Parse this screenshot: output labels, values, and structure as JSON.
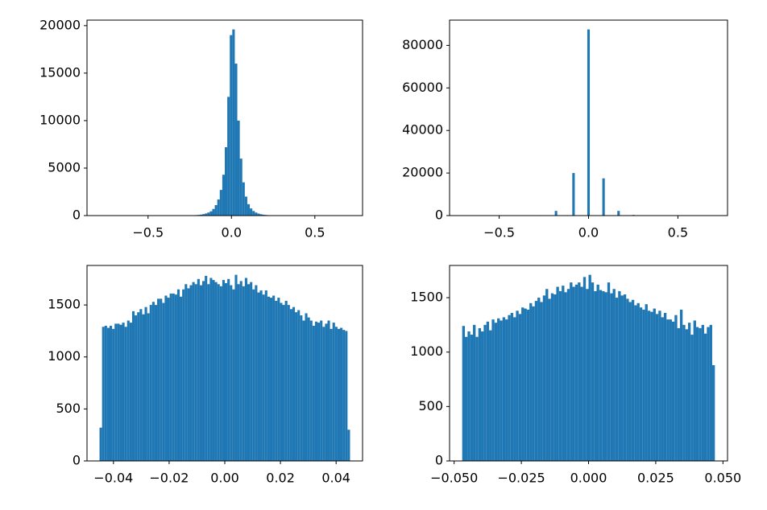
{
  "chart_data": [
    {
      "type": "histogram",
      "color": "#1f77b4",
      "bins": [
        -0.79,
        -0.775,
        -0.76,
        -0.745,
        -0.73,
        -0.715,
        -0.7,
        -0.685,
        -0.67,
        -0.655,
        -0.64,
        -0.625,
        -0.61,
        -0.595,
        -0.58,
        -0.565,
        -0.55,
        -0.535,
        -0.52,
        -0.505,
        -0.49,
        -0.475,
        -0.46,
        -0.445,
        -0.43,
        -0.415,
        -0.4,
        -0.385,
        -0.37,
        -0.355,
        -0.34,
        -0.325,
        -0.31,
        -0.295,
        -0.28,
        -0.265,
        -0.25,
        -0.235,
        -0.22,
        -0.205,
        -0.19,
        -0.175,
        -0.16,
        -0.145,
        -0.13,
        -0.115,
        -0.1,
        -0.085,
        -0.07,
        -0.055,
        -0.04,
        -0.025,
        -0.01,
        0.005,
        0.02,
        0.035,
        0.05,
        0.065,
        0.08,
        0.095,
        0.11,
        0.125,
        0.14,
        0.155,
        0.17,
        0.185,
        0.2,
        0.215,
        0.23,
        0.245,
        0.26,
        0.275,
        0.29,
        0.305,
        0.32,
        0.335,
        0.35,
        0.365,
        0.38,
        0.395,
        0.41,
        0.425,
        0.44,
        0.455,
        0.47,
        0.485,
        0.5,
        0.515,
        0.53,
        0.545,
        0.56,
        0.575,
        0.59,
        0.605,
        0.62,
        0.635,
        0.65,
        0.665,
        0.68,
        0.695,
        0.71
      ],
      "values": [
        0,
        0,
        0,
        0,
        0,
        0,
        0,
        0,
        0,
        0,
        0,
        0,
        0,
        0,
        0,
        0,
        0,
        0,
        0,
        0,
        0,
        0,
        0,
        0,
        0,
        0,
        0,
        0,
        0,
        0,
        2,
        3,
        5,
        8,
        12,
        18,
        25,
        35,
        50,
        70,
        100,
        150,
        220,
        320,
        450,
        700,
        1100,
        1700,
        2700,
        4300,
        7200,
        12500,
        19000,
        19600,
        16000,
        10000,
        6000,
        3500,
        2000,
        1200,
        750,
        480,
        320,
        210,
        140,
        95,
        65,
        45,
        30,
        20,
        14,
        10,
        7,
        5,
        3,
        2,
        0,
        0,
        0,
        0,
        0,
        0,
        0,
        0,
        0,
        0,
        0,
        0,
        0,
        0,
        0,
        0,
        0,
        0,
        0,
        0,
        0,
        0,
        0,
        0
      ],
      "xlim": [
        -0.866,
        0.786
      ],
      "xticks": [
        {
          "value": -0.5,
          "label": "−0.5"
        },
        {
          "value": 0,
          "label": "0.0"
        },
        {
          "value": 0.5,
          "label": "0.5"
        }
      ],
      "ylim": [
        0,
        20580
      ],
      "yticks": [
        0,
        5000,
        10000,
        15000,
        20000
      ]
    },
    {
      "type": "histogram",
      "color": "#1f77b4",
      "bins": [
        -0.707,
        -0.693,
        -0.679,
        -0.665,
        -0.651,
        -0.637,
        -0.623,
        -0.609,
        -0.595,
        -0.581,
        -0.567,
        -0.553,
        -0.539,
        -0.525,
        -0.511,
        -0.497,
        -0.483,
        -0.469,
        -0.455,
        -0.441,
        -0.427,
        -0.413,
        -0.399,
        -0.385,
        -0.371,
        -0.357,
        -0.343,
        -0.329,
        -0.315,
        -0.301,
        -0.287,
        -0.273,
        -0.259,
        -0.245,
        -0.231,
        -0.217,
        -0.203,
        -0.189,
        -0.175,
        -0.161,
        -0.147,
        -0.133,
        -0.119,
        -0.105,
        -0.091,
        -0.077,
        -0.063,
        -0.049,
        -0.035,
        -0.021,
        -0.007,
        0.007,
        0.021,
        0.035,
        0.049,
        0.063,
        0.077,
        0.091,
        0.105,
        0.119,
        0.133,
        0.147,
        0.161,
        0.175,
        0.189,
        0.203,
        0.217,
        0.231,
        0.245,
        0.259,
        0.273,
        0.287,
        0.301,
        0.315,
        0.329,
        0.343,
        0.357,
        0.371,
        0.385,
        0.399,
        0.413,
        0.427,
        0.441,
        0.455,
        0.469,
        0.483,
        0.497,
        0.511,
        0.525,
        0.539,
        0.553,
        0.567,
        0.581,
        0.595,
        0.609,
        0.623,
        0.637,
        0.651,
        0.665,
        0.679,
        0.693,
        0.707
      ],
      "values": [
        0,
        0,
        0,
        0,
        0,
        0,
        0,
        0,
        0,
        0,
        0,
        0,
        0,
        0,
        0,
        0,
        0,
        0,
        0,
        0,
        0,
        0,
        0,
        0,
        0,
        0,
        0,
        0,
        0,
        0,
        0,
        200,
        0,
        0,
        0,
        0,
        0,
        2200,
        0,
        0,
        0,
        0,
        0,
        0,
        20000,
        0,
        0,
        0,
        0,
        0,
        87500,
        0,
        0,
        0,
        0,
        0,
        17500,
        0,
        0,
        0,
        0,
        0,
        2200,
        0,
        0,
        0,
        0,
        0,
        300,
        0,
        0,
        0,
        0,
        0,
        0,
        0,
        0,
        0,
        0,
        0,
        0,
        0,
        0,
        0,
        0,
        0,
        0,
        0,
        0,
        0,
        0,
        0,
        0,
        0,
        0,
        0,
        0,
        0,
        0,
        0,
        0,
        0
      ],
      "xlim": [
        -0.7777,
        0.7777
      ],
      "xticks": [
        {
          "value": -0.5,
          "label": "−0.5"
        },
        {
          "value": 0,
          "label": "0.0"
        },
        {
          "value": 0.5,
          "label": "0.5"
        }
      ],
      "ylim": [
        0,
        91875
      ],
      "yticks": [
        0,
        20000,
        40000,
        60000,
        80000
      ]
    },
    {
      "type": "histogram",
      "color": "#1f77b4",
      "bins": [
        -0.045,
        -0.0441,
        -0.0432,
        -0.0423,
        -0.0414,
        -0.0405,
        -0.0396,
        -0.0387,
        -0.0378,
        -0.0369,
        -0.036,
        -0.0351,
        -0.0342,
        -0.0333,
        -0.0324,
        -0.0315,
        -0.0306,
        -0.0297,
        -0.0288,
        -0.0279,
        -0.027,
        -0.0261,
        -0.0252,
        -0.0243,
        -0.0234,
        -0.0225,
        -0.0216,
        -0.0207,
        -0.0198,
        -0.0189,
        -0.018,
        -0.0171,
        -0.0162,
        -0.0153,
        -0.0144,
        -0.0135,
        -0.0126,
        -0.0117,
        -0.0108,
        -0.0099,
        -0.009,
        -0.0081,
        -0.0072,
        -0.0063,
        -0.0054,
        -0.0045,
        -0.0036,
        -0.0027,
        -0.0018,
        -0.0009,
        0,
        0.0009,
        0.0018,
        0.0027,
        0.0036,
        0.0045,
        0.0054,
        0.0063,
        0.0072,
        0.0081,
        0.009,
        0.0099,
        0.0108,
        0.0117,
        0.0126,
        0.0135,
        0.0144,
        0.0153,
        0.0162,
        0.0171,
        0.018,
        0.0189,
        0.0198,
        0.0207,
        0.0216,
        0.0225,
        0.0234,
        0.0243,
        0.0252,
        0.0261,
        0.027,
        0.0279,
        0.0288,
        0.0297,
        0.0306,
        0.0315,
        0.0324,
        0.0333,
        0.0342,
        0.0351,
        0.036,
        0.0369,
        0.0378,
        0.0387,
        0.0396,
        0.0405,
        0.0414,
        0.0423,
        0.0432,
        0.0441,
        0.045
      ],
      "values": [
        320,
        1290,
        1300,
        1280,
        1300,
        1270,
        1320,
        1320,
        1310,
        1330,
        1290,
        1350,
        1330,
        1440,
        1400,
        1430,
        1460,
        1410,
        1480,
        1420,
        1500,
        1530,
        1500,
        1560,
        1560,
        1520,
        1590,
        1570,
        1610,
        1610,
        1600,
        1650,
        1580,
        1650,
        1700,
        1660,
        1690,
        1720,
        1700,
        1750,
        1690,
        1730,
        1780,
        1700,
        1760,
        1740,
        1720,
        1700,
        1680,
        1740,
        1710,
        1750,
        1690,
        1650,
        1790,
        1700,
        1730,
        1680,
        1760,
        1700,
        1720,
        1650,
        1690,
        1620,
        1640,
        1600,
        1640,
        1580,
        1570,
        1590,
        1540,
        1570,
        1520,
        1500,
        1540,
        1500,
        1460,
        1480,
        1430,
        1450,
        1400,
        1350,
        1420,
        1380,
        1350,
        1300,
        1340,
        1330,
        1350,
        1290,
        1320,
        1350,
        1270,
        1330,
        1290,
        1270,
        1280,
        1260,
        1250,
        300
      ],
      "xlim": [
        -0.0495,
        0.0495
      ],
      "xticks": [
        {
          "value": -0.04,
          "label": "−0.04"
        },
        {
          "value": -0.02,
          "label": "−0.02"
        },
        {
          "value": 0,
          "label": "0.00"
        },
        {
          "value": 0.02,
          "label": "0.02"
        },
        {
          "value": 0.04,
          "label": "0.04"
        }
      ],
      "ylim": [
        0,
        1880
      ],
      "yticks": [
        0,
        500,
        1000,
        1500
      ]
    },
    {
      "type": "histogram",
      "color": "#1f77b4",
      "bins": [
        -0.047,
        -0.046,
        -0.045,
        -0.044,
        -0.043,
        -0.042,
        -0.041,
        -0.04,
        -0.039,
        -0.038,
        -0.037,
        -0.036,
        -0.035,
        -0.034,
        -0.033,
        -0.032,
        -0.031,
        -0.03,
        -0.029,
        -0.028,
        -0.027,
        -0.026,
        -0.025,
        -0.024,
        -0.023,
        -0.022,
        -0.021,
        -0.02,
        -0.019,
        -0.018,
        -0.017,
        -0.016,
        -0.015,
        -0.014,
        -0.013,
        -0.012,
        -0.011,
        -0.01,
        -0.009,
        -0.008,
        -0.007,
        -0.006,
        -0.005,
        -0.004,
        -0.003,
        -0.002,
        -0.001,
        0,
        0.001,
        0.002,
        0.003,
        0.004,
        0.005,
        0.006,
        0.007,
        0.008,
        0.009,
        0.01,
        0.011,
        0.012,
        0.013,
        0.014,
        0.015,
        0.016,
        0.017,
        0.018,
        0.019,
        0.02,
        0.021,
        0.022,
        0.023,
        0.024,
        0.025,
        0.026,
        0.027,
        0.028,
        0.029,
        0.03,
        0.031,
        0.032,
        0.033,
        0.034,
        0.035,
        0.036,
        0.037,
        0.038,
        0.039,
        0.04,
        0.041,
        0.042,
        0.043,
        0.044,
        0.045,
        0.046,
        0.047
      ],
      "values": [
        1240,
        1140,
        1190,
        1160,
        1250,
        1140,
        1220,
        1190,
        1250,
        1280,
        1200,
        1300,
        1270,
        1310,
        1290,
        1320,
        1300,
        1340,
        1360,
        1320,
        1380,
        1350,
        1410,
        1400,
        1390,
        1450,
        1420,
        1470,
        1500,
        1460,
        1520,
        1580,
        1490,
        1540,
        1530,
        1600,
        1560,
        1610,
        1550,
        1580,
        1640,
        1600,
        1620,
        1640,
        1600,
        1690,
        1580,
        1710,
        1640,
        1560,
        1620,
        1570,
        1560,
        1550,
        1640,
        1540,
        1580,
        1500,
        1560,
        1520,
        1530,
        1490,
        1460,
        1480,
        1430,
        1450,
        1410,
        1390,
        1440,
        1380,
        1370,
        1400,
        1350,
        1380,
        1320,
        1360,
        1300,
        1300,
        1280,
        1340,
        1220,
        1390,
        1250,
        1210,
        1270,
        1160,
        1290,
        1230,
        1220,
        1250,
        1170,
        1230,
        1250,
        880
      ],
      "xlim": [
        -0.0517,
        0.0517
      ],
      "xticks": [
        {
          "value": -0.05,
          "label": "−0.050"
        },
        {
          "value": -0.025,
          "label": "−0.025"
        },
        {
          "value": 0,
          "label": "0.000"
        },
        {
          "value": 0.025,
          "label": "0.025"
        },
        {
          "value": 0.05,
          "label": "0.050"
        }
      ],
      "ylim": [
        0,
        1796
      ],
      "yticks": [
        0,
        500,
        1000,
        1500
      ]
    }
  ]
}
